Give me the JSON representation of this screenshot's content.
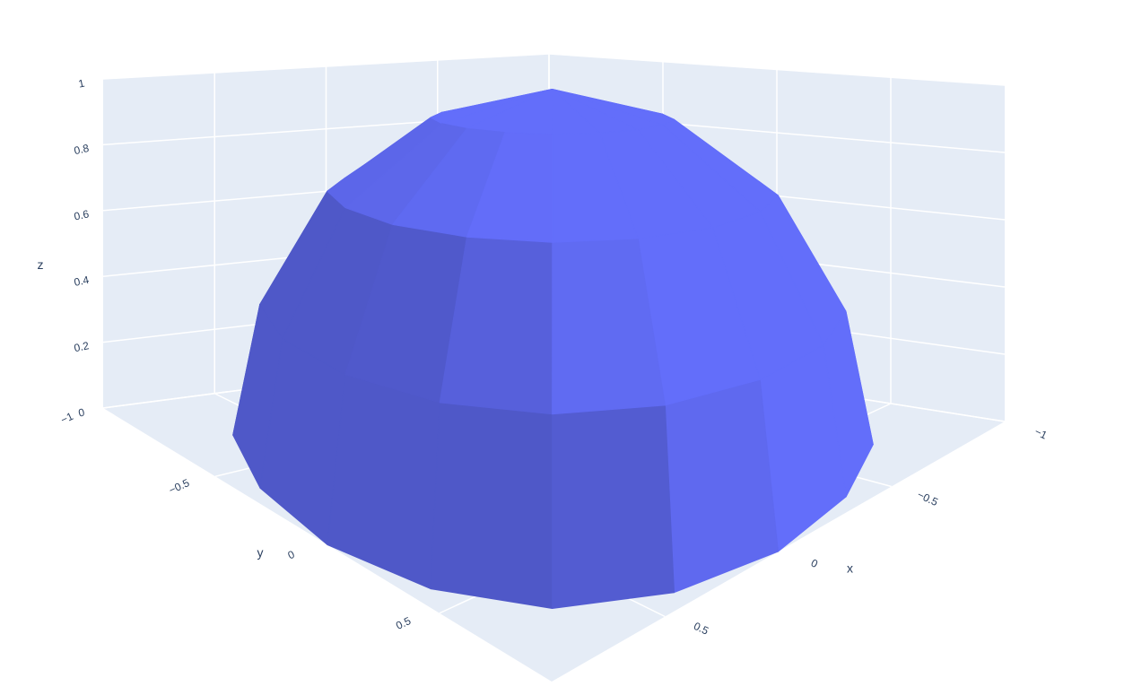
{
  "chart_data": {
    "type": "surface",
    "color": "#636efa",
    "x": [
      [
        1,
        0.92,
        0.71,
        0.38,
        0,
        -0.38,
        -0.71,
        -0.92,
        -1,
        -0.92,
        -0.71,
        -0.38,
        0,
        0.38,
        0.71,
        0.92,
        1
      ],
      [
        0.92,
        0.85,
        0.65,
        0.35,
        0,
        -0.35,
        -0.65,
        -0.85,
        -0.92,
        -0.85,
        -0.65,
        -0.35,
        0,
        0.35,
        0.65,
        0.85,
        0.92
      ],
      [
        0.71,
        0.65,
        0.5,
        0.27,
        0,
        -0.27,
        -0.5,
        -0.65,
        -0.71,
        -0.65,
        -0.5,
        -0.27,
        0,
        0.27,
        0.5,
        0.65,
        0.71
      ],
      [
        0.38,
        0.35,
        0.27,
        0.14,
        0,
        -0.14,
        -0.27,
        -0.35,
        -0.38,
        -0.35,
        -0.27,
        -0.14,
        0,
        0.14,
        0.27,
        0.35,
        0.38
      ],
      [
        0,
        0,
        0,
        0,
        0,
        0,
        0,
        0,
        0,
        0,
        0,
        0,
        0,
        0,
        0,
        0,
        0
      ]
    ],
    "y": [
      [
        0,
        0.38,
        0.71,
        0.92,
        1,
        0.92,
        0.71,
        0.38,
        0,
        -0.38,
        -0.71,
        -0.92,
        -1,
        -0.92,
        -0.71,
        -0.38,
        0
      ],
      [
        0,
        0.35,
        0.65,
        0.85,
        0.92,
        0.85,
        0.65,
        0.35,
        0,
        -0.35,
        -0.65,
        -0.85,
        -0.92,
        -0.85,
        -0.65,
        -0.35,
        0
      ],
      [
        0,
        0.27,
        0.5,
        0.65,
        0.71,
        0.65,
        0.5,
        0.27,
        0,
        -0.27,
        -0.5,
        -0.65,
        -0.71,
        -0.65,
        -0.5,
        -0.27,
        0
      ],
      [
        0,
        0.14,
        0.27,
        0.35,
        0.38,
        0.35,
        0.27,
        0.14,
        0,
        -0.14,
        -0.27,
        -0.35,
        -0.38,
        -0.35,
        -0.27,
        -0.14,
        0
      ],
      [
        0,
        0,
        0,
        0,
        0,
        0,
        0,
        0,
        0,
        0,
        0,
        0,
        0,
        0,
        0,
        0,
        0
      ]
    ],
    "z": [
      [
        0,
        0,
        0,
        0,
        0,
        0,
        0,
        0,
        0,
        0,
        0,
        0,
        0,
        0,
        0,
        0,
        0
      ],
      [
        0.38,
        0.38,
        0.38,
        0.38,
        0.38,
        0.38,
        0.38,
        0.38,
        0.38,
        0.38,
        0.38,
        0.38,
        0.38,
        0.38,
        0.38,
        0.38,
        0.38
      ],
      [
        0.71,
        0.71,
        0.71,
        0.71,
        0.71,
        0.71,
        0.71,
        0.71,
        0.71,
        0.71,
        0.71,
        0.71,
        0.71,
        0.71,
        0.71,
        0.71,
        0.71
      ],
      [
        0.92,
        0.92,
        0.92,
        0.92,
        0.92,
        0.92,
        0.92,
        0.92,
        0.92,
        0.92,
        0.92,
        0.92,
        0.92,
        0.92,
        0.92,
        0.92,
        0.92
      ],
      [
        1,
        1,
        1,
        1,
        1,
        1,
        1,
        1,
        1,
        1,
        1,
        1,
        1,
        1,
        1,
        1,
        1
      ]
    ],
    "xlabel": "x",
    "ylabel": "y",
    "zlabel": "z",
    "xlim": [
      -1,
      1
    ],
    "ylim": [
      -1,
      1
    ],
    "zlim": [
      0,
      1
    ],
    "xticks": [
      {
        "value": -1,
        "label": "−1"
      },
      {
        "value": -0.5,
        "label": "−0.5"
      },
      0,
      0.5
    ],
    "yticks": [
      {
        "value": -1,
        "label": "−1"
      },
      {
        "value": -0.5,
        "label": "−0.5"
      },
      0,
      0.5
    ],
    "zticks": [
      0,
      0.2,
      0.4,
      0.6,
      0.8,
      1
    ],
    "grid": true
  }
}
